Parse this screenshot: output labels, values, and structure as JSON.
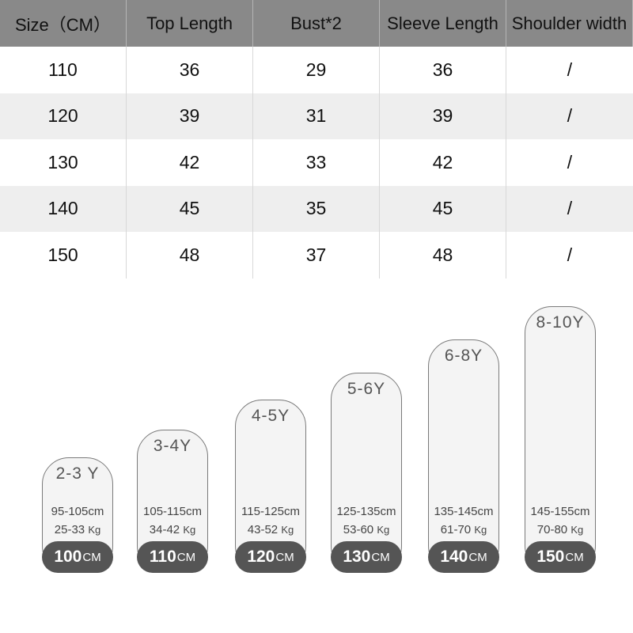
{
  "table": {
    "headers": [
      "Size（CM）",
      "Top Length",
      "Bust*2",
      "Sleeve Length",
      "Shoulder width"
    ],
    "rows": [
      [
        "110",
        "36",
        "29",
        "36",
        "/"
      ],
      [
        "120",
        "39",
        "31",
        "39",
        "/"
      ],
      [
        "130",
        "42",
        "33",
        "42",
        "/"
      ],
      [
        "140",
        "45",
        "35",
        "45",
        "/"
      ],
      [
        "150",
        "48",
        "37",
        "48",
        "/"
      ]
    ]
  },
  "size_guide": [
    {
      "age": "2-3 Y",
      "height": "95-105cm",
      "weight": "25-33",
      "weight_unit": "Kg",
      "size": "100",
      "size_unit": "CM"
    },
    {
      "age": "3-4Y",
      "height": "105-115cm",
      "weight": "34-42",
      "weight_unit": "Kg",
      "size": "110",
      "size_unit": "CM"
    },
    {
      "age": "4-5Y",
      "height": "115-125cm",
      "weight": "43-52",
      "weight_unit": "Kg",
      "size": "120",
      "size_unit": "CM"
    },
    {
      "age": "5-6Y",
      "height": "125-135cm",
      "weight": "53-60",
      "weight_unit": "Kg",
      "size": "130",
      "size_unit": "CM"
    },
    {
      "age": "6-8Y",
      "height": "135-145cm",
      "weight": "61-70",
      "weight_unit": "Kg",
      "size": "140",
      "size_unit": "CM"
    },
    {
      "age": "8-10Y",
      "height": "145-155cm",
      "weight": "70-80",
      "weight_unit": "Kg",
      "size": "150",
      "size_unit": "CM"
    }
  ],
  "colors": {
    "header_bg": "#898989",
    "row_alt_bg": "#eeeeee",
    "pill_bg": "#555555",
    "capsule_bg": "#f4f4f4"
  }
}
